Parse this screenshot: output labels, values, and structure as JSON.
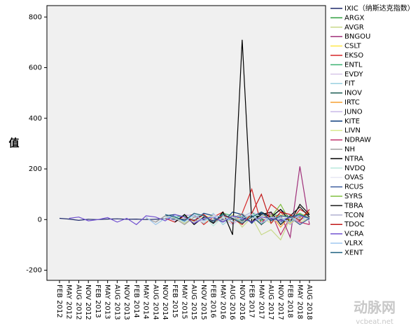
{
  "chart_data": {
    "type": "line",
    "y_label": "值",
    "categories": [
      "FEB 2012",
      "MAY 2012",
      "AUG 2012",
      "NOV 2012",
      "FEB 2013",
      "MAY 2013",
      "AUG 2013",
      "NOV 2013",
      "FEB 2014",
      "MAY 2014",
      "AUG 2014",
      "NOV 2014",
      "FEB 2015",
      "MAY 2015",
      "AUG 2015",
      "NOV 2015",
      "FEB 2016",
      "MAY 2016",
      "AUG 2016",
      "NOV 2016",
      "FEB 2017",
      "MAY 2017",
      "AUG 2017",
      "NOV 2017",
      "FEB 2018",
      "MAY 2018",
      "AUG 2018"
    ],
    "ylim": [
      -240,
      845
    ],
    "yticks": [
      -200,
      0,
      200,
      400,
      600,
      800
    ],
    "legend": "right",
    "series": [
      {
        "name": "IXIC（纳斯达克指数）",
        "color": "#1f2a6b",
        "values": [
          5,
          2,
          -3,
          1,
          0,
          2,
          3,
          1,
          2,
          0,
          1,
          3,
          2,
          1,
          -2,
          0,
          -3,
          1,
          2,
          1,
          3,
          2,
          1,
          0,
          2,
          -1,
          1
        ]
      },
      {
        "name": "ARGX",
        "color": "#2e9e3e",
        "values": [
          null,
          null,
          null,
          null,
          null,
          null,
          null,
          null,
          null,
          null,
          null,
          null,
          null,
          null,
          null,
          null,
          null,
          null,
          null,
          null,
          null,
          5,
          20,
          -10,
          15,
          8,
          30
        ]
      },
      {
        "name": "AVGR",
        "color": "#c8d98a",
        "values": [
          null,
          null,
          null,
          null,
          null,
          null,
          null,
          null,
          null,
          null,
          -20,
          5,
          10,
          -15,
          8,
          -5,
          12,
          -10,
          20,
          -30,
          10,
          -60,
          -40,
          -80,
          5,
          -20,
          10
        ]
      },
      {
        "name": "BNGOU",
        "color": "#a0307a",
        "values": [
          null,
          null,
          null,
          null,
          null,
          null,
          null,
          null,
          null,
          null,
          null,
          null,
          null,
          null,
          null,
          null,
          null,
          null,
          null,
          null,
          null,
          null,
          10,
          20,
          -70,
          210,
          -20
        ]
      },
      {
        "name": "CSLT",
        "color": "#ffe84a",
        "values": [
          null,
          null,
          null,
          null,
          null,
          null,
          null,
          null,
          null,
          null,
          null,
          null,
          null,
          null,
          10,
          -15,
          20,
          5,
          -10,
          15,
          8,
          -5,
          20,
          10,
          -15,
          12,
          5
        ]
      },
      {
        "name": "EKSO",
        "color": "#d62728",
        "values": [
          null,
          null,
          null,
          null,
          null,
          null,
          null,
          null,
          null,
          null,
          null,
          5,
          -10,
          15,
          20,
          -20,
          10,
          30,
          -15,
          25,
          120,
          -20,
          60,
          30,
          -10,
          40,
          20
        ]
      },
      {
        "name": "ENTL",
        "color": "#3cb371",
        "values": [
          null,
          null,
          null,
          null,
          null,
          null,
          null,
          null,
          null,
          null,
          null,
          null,
          10,
          15,
          -5,
          20,
          -10,
          25,
          15,
          10,
          30,
          -5,
          20,
          15,
          10,
          25,
          5
        ]
      },
      {
        "name": "EVDY",
        "color": "#d8c8e8",
        "values": [
          null,
          null,
          null,
          null,
          null,
          null,
          null,
          null,
          null,
          null,
          null,
          null,
          null,
          null,
          null,
          null,
          null,
          null,
          null,
          null,
          10,
          -20,
          30,
          -10,
          20,
          15,
          -5
        ]
      },
      {
        "name": "FIT",
        "color": "#9ad0e0",
        "values": [
          null,
          null,
          null,
          null,
          null,
          null,
          null,
          null,
          null,
          null,
          null,
          null,
          null,
          20,
          10,
          -15,
          25,
          -20,
          10,
          15,
          -10,
          5,
          20,
          -15,
          10,
          5,
          8
        ]
      },
      {
        "name": "INOV",
        "color": "#1a5a50",
        "values": [
          null,
          null,
          null,
          null,
          null,
          null,
          null,
          null,
          null,
          null,
          null,
          null,
          null,
          null,
          null,
          null,
          5,
          -10,
          10,
          -5,
          15,
          -20,
          10,
          5,
          -10,
          15,
          20
        ]
      },
      {
        "name": "IRTC",
        "color": "#f5a030",
        "values": [
          null,
          null,
          null,
          null,
          null,
          null,
          null,
          null,
          null,
          null,
          null,
          null,
          null,
          null,
          null,
          null,
          null,
          null,
          null,
          null,
          null,
          5,
          20,
          -30,
          15,
          10,
          30
        ]
      },
      {
        "name": "JUNO",
        "color": "#c8b8e8",
        "values": [
          null,
          null,
          null,
          null,
          null,
          null,
          null,
          null,
          null,
          null,
          null,
          10,
          -5,
          20,
          15,
          -10,
          20,
          5,
          -20,
          10,
          30,
          15,
          -10,
          20,
          5,
          -15,
          10
        ]
      },
      {
        "name": "KITE",
        "color": "#0c3c7c",
        "values": [
          null,
          null,
          null,
          null,
          null,
          null,
          null,
          null,
          null,
          null,
          -10,
          15,
          20,
          10,
          -5,
          25,
          15,
          -10,
          30,
          20,
          -15,
          25,
          10,
          40,
          5,
          -5,
          null
        ]
      },
      {
        "name": "LIVN",
        "color": "#d8e890",
        "values": [
          null,
          null,
          null,
          null,
          null,
          null,
          null,
          null,
          null,
          null,
          null,
          null,
          null,
          5,
          -10,
          10,
          15,
          -5,
          20,
          -10,
          5,
          10,
          -15,
          20,
          10,
          -10,
          5
        ]
      },
      {
        "name": "NDRAW",
        "color": "#c0306a",
        "values": [
          null,
          null,
          null,
          null,
          null,
          null,
          null,
          null,
          null,
          null,
          null,
          null,
          null,
          null,
          null,
          null,
          null,
          null,
          null,
          null,
          20,
          -15,
          30,
          -60,
          10,
          -10,
          -20
        ]
      },
      {
        "name": "NH",
        "color": "#a0a0a0",
        "values": [
          null,
          null,
          null,
          null,
          null,
          null,
          null,
          null,
          null,
          5,
          -10,
          15,
          5,
          -20,
          10,
          20,
          -15,
          10,
          5,
          25,
          -10,
          15,
          20,
          -5,
          10,
          5,
          0
        ]
      },
      {
        "name": "NTRA",
        "color": "#000000",
        "values": [
          null,
          null,
          null,
          null,
          null,
          null,
          null,
          null,
          null,
          null,
          null,
          null,
          -10,
          20,
          -20,
          10,
          -15,
          30,
          -60,
          710,
          -10,
          30,
          10,
          40,
          -10,
          60,
          20
        ]
      },
      {
        "name": "NVDQ",
        "color": "#b8e8dc",
        "values": [
          null,
          null,
          null,
          null,
          null,
          null,
          null,
          null,
          null,
          null,
          null,
          10,
          5,
          -10,
          20,
          15,
          -25,
          10,
          5,
          -10,
          20,
          15,
          -10,
          5,
          10,
          -5,
          8
        ]
      },
      {
        "name": "OVAS",
        "color": "#e8e8f4",
        "values": [
          null,
          null,
          null,
          null,
          null,
          null,
          null,
          null,
          null,
          null,
          null,
          null,
          null,
          null,
          5,
          -10,
          15,
          -5,
          10,
          -15,
          5,
          10,
          -10,
          15,
          5,
          -5,
          10
        ]
      },
      {
        "name": "RCUS",
        "color": "#4060a0",
        "values": [
          null,
          null,
          null,
          null,
          null,
          null,
          null,
          null,
          null,
          null,
          null,
          null,
          null,
          null,
          null,
          null,
          null,
          null,
          null,
          null,
          null,
          null,
          null,
          -10,
          10,
          -20,
          5
        ]
      },
      {
        "name": "SYRS",
        "color": "#80c040",
        "values": [
          null,
          null,
          null,
          null,
          null,
          null,
          null,
          null,
          null,
          null,
          null,
          null,
          null,
          null,
          null,
          null,
          null,
          null,
          5,
          -10,
          20,
          -15,
          10,
          60,
          -10,
          25,
          5
        ]
      },
      {
        "name": "TBRA",
        "color": "#1a1a1a",
        "values": [
          null,
          null,
          null,
          null,
          null,
          null,
          null,
          null,
          null,
          null,
          null,
          null,
          null,
          null,
          null,
          null,
          null,
          null,
          null,
          10,
          -10,
          20,
          30,
          -20,
          15,
          50,
          10
        ]
      },
      {
        "name": "TCON",
        "color": "#b0b0d0",
        "values": [
          null,
          null,
          null,
          null,
          null,
          null,
          null,
          null,
          null,
          null,
          null,
          null,
          null,
          null,
          -10,
          5,
          10,
          -5,
          15,
          -10,
          20,
          -15,
          5,
          10,
          -20,
          15,
          5
        ]
      },
      {
        "name": "TDOC",
        "color": "#c01818",
        "values": [
          null,
          null,
          null,
          null,
          null,
          null,
          null,
          null,
          null,
          null,
          null,
          null,
          null,
          10,
          -5,
          20,
          -10,
          15,
          5,
          -20,
          25,
          100,
          -15,
          30,
          20,
          -5,
          40
        ]
      },
      {
        "name": "VCRA",
        "color": "#7050d0",
        "values": [
          null,
          5,
          10,
          -5,
          0,
          8,
          -10,
          5,
          -20,
          15,
          10,
          -5,
          20,
          10,
          -15,
          5,
          10,
          -10,
          15,
          5,
          -10,
          10,
          5,
          -5,
          10,
          15,
          5
        ]
      },
      {
        "name": "VLRX",
        "color": "#a0c8f0",
        "values": [
          null,
          null,
          null,
          null,
          null,
          null,
          null,
          null,
          null,
          10,
          -20,
          5,
          15,
          -10,
          20,
          -5,
          10,
          15,
          -10,
          5,
          20,
          -15,
          10,
          5,
          -10,
          20,
          5
        ]
      },
      {
        "name": "XENT",
        "color": "#1e6080",
        "values": [
          null,
          null,
          null,
          null,
          null,
          null,
          null,
          null,
          null,
          null,
          null,
          20,
          10,
          -5,
          25,
          15,
          -10,
          20,
          5,
          -15,
          10,
          30,
          -5,
          15,
          10,
          20,
          5
        ]
      }
    ]
  },
  "watermark": {
    "text": "动脉网",
    "url": "vcbeat.net"
  }
}
